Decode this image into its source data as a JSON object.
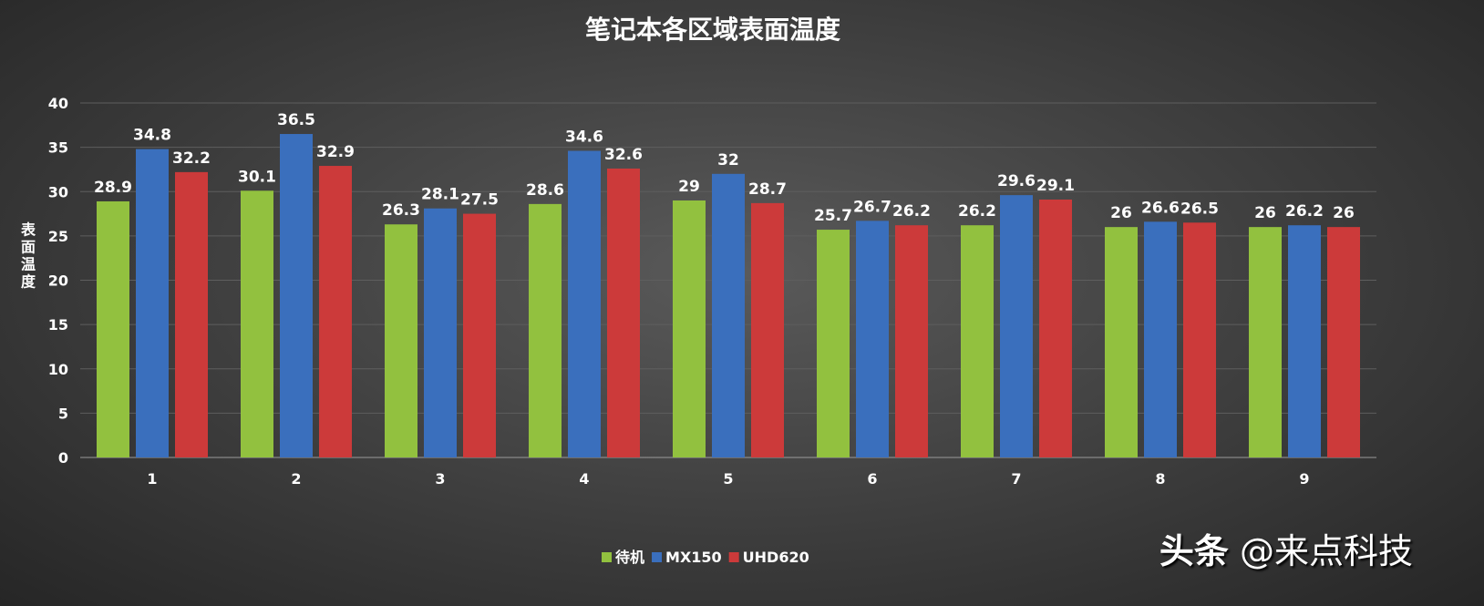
{
  "chart_data": {
    "type": "bar",
    "title": "笔记本各区域表面温度",
    "xlabel": "",
    "ylabel": "表面温度",
    "ylim": [
      0,
      40
    ],
    "yticks": [
      0,
      5,
      10,
      15,
      20,
      25,
      30,
      35,
      40
    ],
    "categories": [
      "1",
      "2",
      "3",
      "4",
      "5",
      "6",
      "7",
      "8",
      "9"
    ],
    "grid": true,
    "legend": "bottom",
    "series": [
      {
        "name": "待机",
        "color": "#92c13f",
        "values": [
          28.9,
          30.1,
          26.3,
          28.6,
          29,
          25.7,
          26.2,
          26,
          26
        ]
      },
      {
        "name": "MX150",
        "color": "#3a6fbd",
        "values": [
          34.8,
          36.5,
          28.1,
          34.6,
          32,
          26.7,
          29.6,
          26.6,
          26.2
        ]
      },
      {
        "name": "UHD620",
        "color": "#cc3a3a",
        "values": [
          32.2,
          32.9,
          27.5,
          32.6,
          28.7,
          26.2,
          29.1,
          26.5,
          26
        ]
      }
    ]
  },
  "watermark": {
    "brand": "头条",
    "account": "@来点科技"
  }
}
